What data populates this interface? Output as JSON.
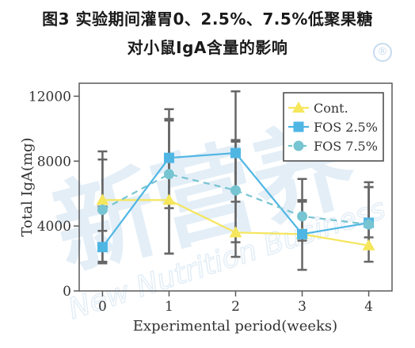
{
  "title_line1": "图3 实验期间灌胃0、2.5%、7.5%低聚果糖",
  "title_line2": "对小鼠IgA含量的影响",
  "watermark": {
    "chinese": "新营养",
    "english": "New Nutrition Business",
    "mark": "®"
  },
  "chart_data": {
    "type": "line",
    "xlabel": "Experimental period(weeks)",
    "ylabel": "Total IgA(mg)",
    "x": [
      0,
      1,
      2,
      3,
      4
    ],
    "xlim": [
      -0.35,
      4.35
    ],
    "ylim": [
      0,
      12800
    ],
    "yticks": [
      0,
      4000,
      8000,
      12000
    ],
    "grid": false,
    "legend_position": "top-right",
    "series": [
      {
        "name": "Cont.",
        "color": "#f5e65c",
        "marker": "triangle",
        "line": "solid",
        "values": [
          5600,
          5600,
          3600,
          3500,
          2800
        ],
        "err_low": [
          3700,
          2300,
          2100,
          3500,
          1800
        ],
        "err_high": [
          8100,
          10600,
          9200,
          5500,
          6400
        ]
      },
      {
        "name": "FOS 2.5%",
        "color": "#4fb6e4",
        "marker": "square",
        "line": "solid",
        "values": [
          2700,
          8200,
          8500,
          3500,
          4200
        ],
        "err_low": [
          1700,
          5100,
          5500,
          1300,
          3300
        ],
        "err_high": [
          5200,
          11200,
          12300,
          5600,
          6400
        ]
      },
      {
        "name": "FOS 7.5%",
        "color": "#77c4d2",
        "marker": "circle",
        "line": "dashed",
        "values": [
          5000,
          7200,
          6200,
          4600,
          4100
        ],
        "err_low": [
          1800,
          2300,
          3000,
          3100,
          2600
        ],
        "err_high": [
          8600,
          10500,
          9300,
          6900,
          6700
        ]
      }
    ]
  }
}
